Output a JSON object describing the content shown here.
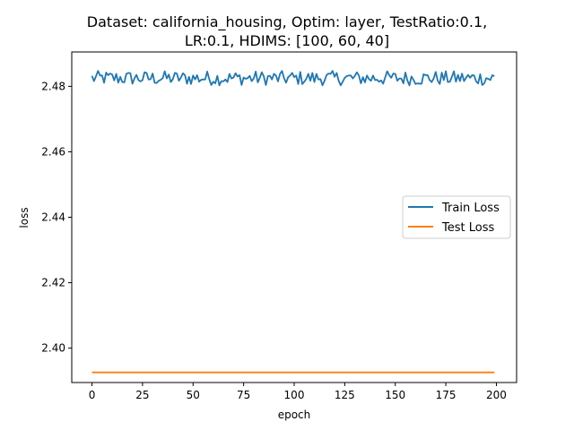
{
  "chart_data": {
    "type": "line",
    "title_lines": [
      "Dataset: california_housing, Optim: layer, TestRatio:0.1,",
      "LR:0.1, HDIMS: [100, 60, 40]"
    ],
    "xlabel": "epoch",
    "ylabel": "loss",
    "xlim": [
      -10,
      210
    ],
    "ylim": [
      2.3895,
      2.4905
    ],
    "xticks": [
      0,
      25,
      50,
      75,
      100,
      125,
      150,
      175,
      200
    ],
    "yticks": [
      2.4,
      2.42,
      2.44,
      2.46,
      2.48
    ],
    "legend_position": "center-right",
    "series": [
      {
        "name": "Train Loss",
        "color": "#1f77b4",
        "x_start": 0,
        "x_end": 199,
        "base": 2.4825,
        "amplitude": 0.0011,
        "values": []
      },
      {
        "name": "Test Loss",
        "color": "#ff7f0e",
        "x_start": 0,
        "x_end": 199,
        "constant": 2.3926
      }
    ]
  }
}
